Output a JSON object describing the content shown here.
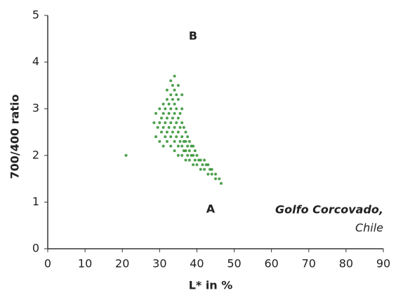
{
  "chart_data": {
    "type": "scatter",
    "xlabel": "L* in %",
    "ylabel": "700/400 ratio",
    "annotations": [
      "B",
      "A",
      "Golfo Corcovado,",
      "Chile"
    ],
    "xlim": [
      0,
      90
    ],
    "xticks": [
      0,
      10,
      20,
      30,
      40,
      50,
      60,
      70,
      80,
      90
    ],
    "ylim": [
      0,
      5
    ],
    "yticks": [
      0,
      1,
      2,
      3,
      4,
      5
    ],
    "grid": false,
    "series": [
      {
        "color": "#2f8f2f",
        "x": [
          29,
          29.5,
          29,
          30,
          30,
          30,
          30.5,
          30.5,
          31,
          31,
          31,
          31,
          31.5,
          31.5,
          31.5,
          32,
          32,
          32,
          32,
          32,
          32.5,
          32.5,
          32.5,
          33,
          33,
          33,
          33,
          33,
          33,
          33.5,
          33.5,
          33.5,
          33.5,
          34,
          34,
          34,
          34,
          34,
          34,
          34,
          34.5,
          34.5,
          34.5,
          34.5,
          35,
          35,
          35,
          35,
          35,
          35,
          35.5,
          35.5,
          35.5,
          36,
          36,
          36,
          36,
          36,
          36.5,
          36.5,
          36.5,
          37,
          37,
          37,
          37,
          37.5,
          37.5,
          37.5,
          38,
          38,
          38,
          38.5,
          38.5,
          39,
          39,
          39,
          39.5,
          39.5,
          40,
          40,
          40.5,
          41,
          41,
          41.5,
          42,
          42,
          42.5,
          43,
          43,
          43.5,
          44,
          44,
          45,
          45,
          46,
          46.5,
          28.5,
          36,
          21
        ],
        "values": [
          2.4,
          2.6,
          2.9,
          2.3,
          2.7,
          3.0,
          2.5,
          2.8,
          2.2,
          2.6,
          2.9,
          3.1,
          2.4,
          2.7,
          3.0,
          2.3,
          2.5,
          2.8,
          3.2,
          3.4,
          2.6,
          2.9,
          3.1,
          2.2,
          2.4,
          2.7,
          3.0,
          3.3,
          3.6,
          2.5,
          2.8,
          3.2,
          3.5,
          2.1,
          2.3,
          2.6,
          2.9,
          3.1,
          3.4,
          3.7,
          2.4,
          2.7,
          3.0,
          3.3,
          2.0,
          2.2,
          2.5,
          2.8,
          3.2,
          3.5,
          2.3,
          2.6,
          2.9,
          2.0,
          2.2,
          2.4,
          2.7,
          3.0,
          2.1,
          2.3,
          2.6,
          1.9,
          2.1,
          2.3,
          2.5,
          2.0,
          2.2,
          2.4,
          1.9,
          2.1,
          2.3,
          2.0,
          2.2,
          1.8,
          2.0,
          2.2,
          1.9,
          2.1,
          1.8,
          2.0,
          1.9,
          1.7,
          1.9,
          1.8,
          1.7,
          1.9,
          1.8,
          1.6,
          1.8,
          1.7,
          1.6,
          1.7,
          1.5,
          1.6,
          1.5,
          1.4,
          2.7,
          3.3,
          2.0
        ]
      }
    ]
  }
}
